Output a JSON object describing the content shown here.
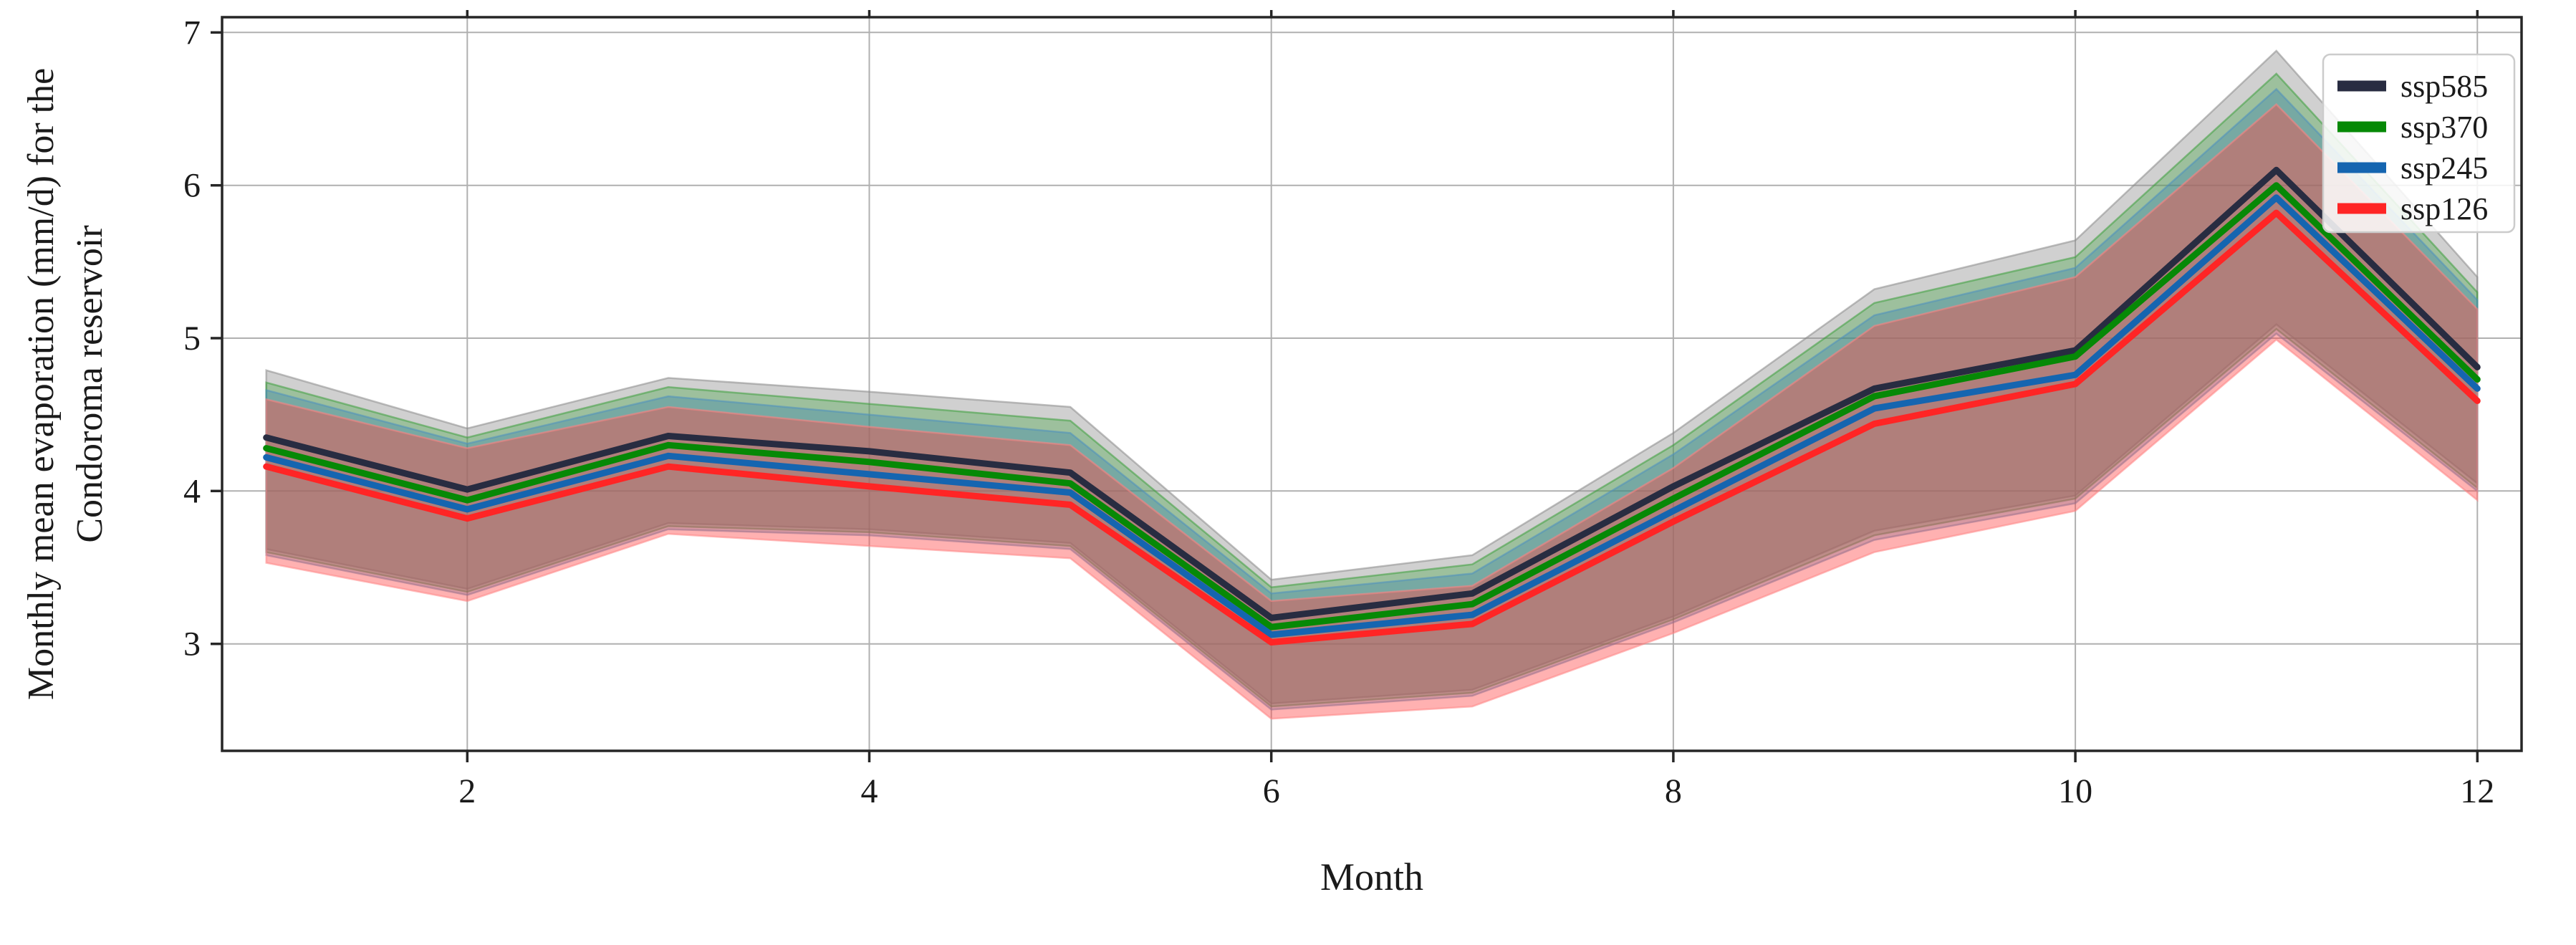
{
  "figure": {
    "xlabel": "Month",
    "ylabel_line1": "Monthly mean evaporation (mm/d) for the",
    "ylabel_line2": "Condoroma reservoir"
  },
  "chart_data": {
    "type": "line",
    "title": "",
    "xlabel": "Month",
    "ylabel": "Monthly mean evaporation (mm/d) for the Condoroma reservoir",
    "x": [
      1,
      2,
      3,
      4,
      5,
      6,
      7,
      8,
      9,
      10,
      11,
      12
    ],
    "xticks": [
      2,
      4,
      6,
      8,
      10,
      12
    ],
    "yticks": [
      3,
      4,
      5,
      6,
      7
    ],
    "xlim": [
      0.78,
      12.22
    ],
    "ylim": [
      2.3,
      7.1
    ],
    "grid": true,
    "legend_position": "upper right",
    "style": {
      "background": "#ffffff",
      "grid_color": "#b0b0b0",
      "spine_color": "#262626",
      "text_color": "#1a1a1a",
      "legend_border": "#cccccc",
      "legend_bg": "rgba(255,255,255,0.85)"
    },
    "series": [
      {
        "name": "ssp585",
        "color": "#282c41",
        "band_color": "#909090",
        "band_alpha": 0.42,
        "band_edge": "#8a8a8a",
        "values": [
          4.35,
          4.01,
          4.36,
          4.26,
          4.12,
          3.17,
          3.33,
          4.03,
          4.67,
          4.92,
          6.1,
          4.81
        ],
        "upper": [
          4.79,
          4.41,
          4.74,
          4.65,
          4.55,
          3.42,
          3.58,
          4.38,
          5.32,
          5.64,
          6.88,
          5.4
        ],
        "lower": [
          3.62,
          3.36,
          3.79,
          3.75,
          3.66,
          2.61,
          2.7,
          3.18,
          3.74,
          3.97,
          5.09,
          4.05
        ]
      },
      {
        "name": "ssp370",
        "color": "#068906",
        "band_color": "#33a033",
        "band_alpha": 0.32,
        "band_edge": "#3c9e3c",
        "values": [
          4.28,
          3.94,
          4.3,
          4.19,
          4.05,
          3.11,
          3.26,
          3.95,
          4.62,
          4.88,
          6.0,
          4.73
        ],
        "upper": [
          4.71,
          4.35,
          4.68,
          4.57,
          4.46,
          3.37,
          3.52,
          4.3,
          5.23,
          5.53,
          6.73,
          5.3
        ],
        "lower": [
          3.6,
          3.34,
          3.77,
          3.73,
          3.64,
          2.59,
          2.68,
          3.16,
          3.71,
          3.95,
          5.06,
          4.02
        ]
      },
      {
        "name": "ssp245",
        "color": "#1565b0",
        "band_color": "#2878b0",
        "band_alpha": 0.32,
        "band_edge": "#4f8fbf",
        "values": [
          4.22,
          3.88,
          4.23,
          4.11,
          3.99,
          3.06,
          3.19,
          3.87,
          4.54,
          4.76,
          5.92,
          4.67
        ],
        "upper": [
          4.66,
          4.31,
          4.62,
          4.5,
          4.38,
          3.33,
          3.46,
          4.24,
          5.15,
          5.46,
          6.63,
          5.25
        ],
        "lower": [
          3.58,
          3.32,
          3.75,
          3.71,
          3.62,
          2.57,
          2.66,
          3.14,
          3.68,
          3.92,
          5.03,
          4.0
        ]
      },
      {
        "name": "ssp126",
        "color": "#ff2525",
        "band_color": "#ff4444",
        "band_alpha": 0.42,
        "band_edge": "#ff8585",
        "values": [
          4.16,
          3.82,
          4.16,
          4.03,
          3.91,
          3.01,
          3.13,
          3.8,
          4.44,
          4.7,
          5.82,
          4.59
        ],
        "upper": [
          4.6,
          4.28,
          4.55,
          4.42,
          4.3,
          3.28,
          3.38,
          4.15,
          5.08,
          5.4,
          6.53,
          5.19
        ],
        "lower": [
          3.53,
          3.28,
          3.72,
          3.64,
          3.56,
          2.51,
          2.59,
          3.07,
          3.6,
          3.87,
          4.99,
          3.94
        ]
      }
    ]
  }
}
